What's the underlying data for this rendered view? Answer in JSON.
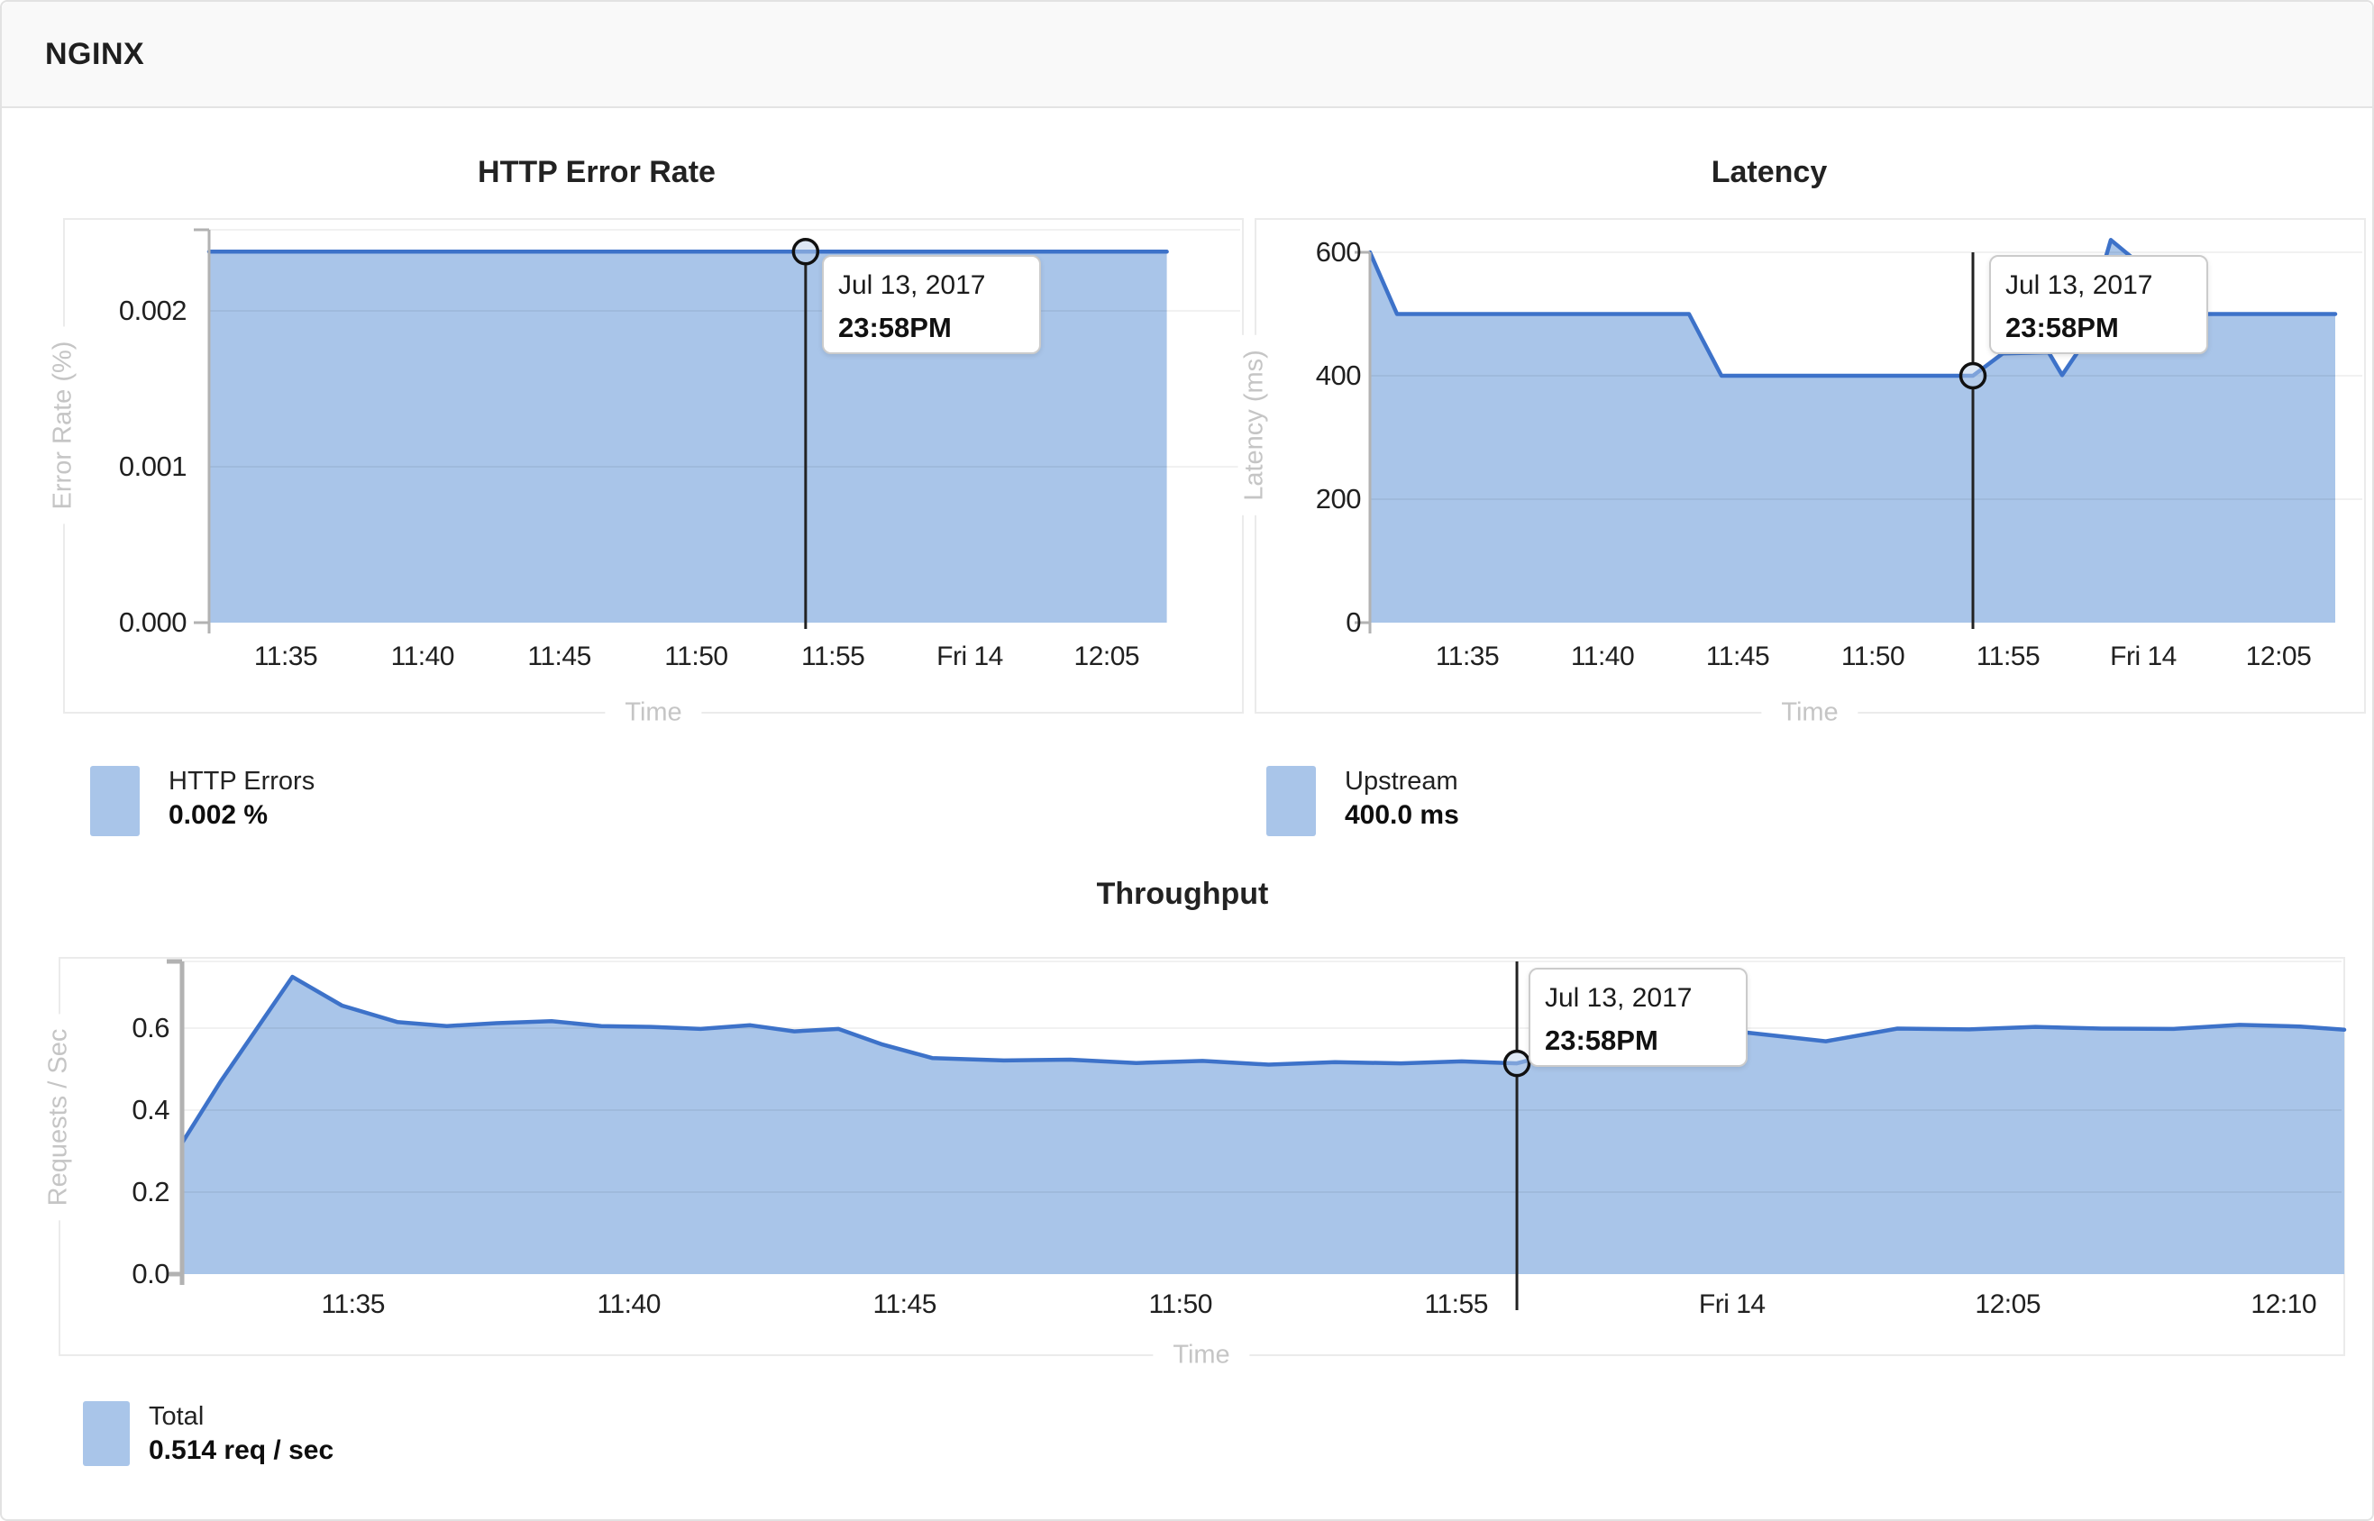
{
  "header": {
    "title": "NGINX"
  },
  "tooltip": {
    "date": "Jul 13, 2017",
    "time": "23:58PM"
  },
  "colors": {
    "area": "#a9c5e9",
    "line": "#3d72c9",
    "axis": "#b2b2b2",
    "grid": "rgba(0,0,0,0.055)",
    "crosshair": "#222222",
    "axis_label_text": "#c5c5c5",
    "tick_text": "#202020"
  },
  "legends": [
    {
      "label": "HTTP Errors",
      "value": "0.002 %"
    },
    {
      "label": "Upstream",
      "value": "400.0 ms"
    },
    {
      "label": "Total",
      "value": "0.514 req / sec"
    }
  ],
  "chart_data": [
    {
      "type": "area",
      "title": "HTTP Error Rate",
      "xlabel": "Time",
      "ylabel": "Error Rate (%)",
      "x_unit": "minutes after 11:00 (60 = Fri 14 00:00)",
      "xlim": [
        32.2,
        67.2
      ],
      "ylim": [
        0,
        0.00252
      ],
      "grid": true,
      "legend_position": "below-left",
      "x_ticks": [
        {
          "t": 35,
          "label": "11:35"
        },
        {
          "t": 40,
          "label": "11:40"
        },
        {
          "t": 45,
          "label": "11:45"
        },
        {
          "t": 50,
          "label": "11:50"
        },
        {
          "t": 55,
          "label": "11:55"
        },
        {
          "t": 60,
          "label": "Fri 14"
        },
        {
          "t": 65,
          "label": "12:05"
        }
      ],
      "y_ticks": [
        {
          "v": 0,
          "label": "0.000"
        },
        {
          "v": 0.001,
          "label": "0.001"
        },
        {
          "v": 0.002,
          "label": "0.002"
        }
      ],
      "series": [
        {
          "name": "HTTP Errors",
          "points": [
            [
              32.2,
              0.00238
            ],
            [
              67.2,
              0.00238
            ]
          ]
        }
      ],
      "marker": {
        "t": 54.0,
        "value": 0.00238
      }
    },
    {
      "type": "area",
      "title": "Latency",
      "xlabel": "Time",
      "ylabel": "Latency (ms)",
      "x_unit": "minutes after 11:00 (60 = Fri 14 00:00)",
      "xlim": [
        31.4,
        67.1
      ],
      "ylim": [
        0,
        600
      ],
      "grid": true,
      "legend_position": "below-left",
      "x_ticks": [
        {
          "t": 35,
          "label": "11:35"
        },
        {
          "t": 40,
          "label": "11:40"
        },
        {
          "t": 45,
          "label": "11:45"
        },
        {
          "t": 50,
          "label": "11:50"
        },
        {
          "t": 55,
          "label": "11:55"
        },
        {
          "t": 60,
          "label": "Fri 14"
        },
        {
          "t": 65,
          "label": "12:05"
        }
      ],
      "y_ticks": [
        {
          "v": 0,
          "label": "0"
        },
        {
          "v": 200,
          "label": "200"
        },
        {
          "v": 400,
          "label": "400"
        },
        {
          "v": 600,
          "label": "600"
        }
      ],
      "series": [
        {
          "name": "Upstream",
          "points": [
            [
              31.4,
              600
            ],
            [
              32.4,
              500
            ],
            [
              43.2,
              500
            ],
            [
              44.4,
              400
            ],
            [
              53.7,
              400
            ],
            [
              54.8,
              436
            ],
            [
              56.5,
              438
            ],
            [
              57.0,
              401
            ],
            [
              57.6,
              440
            ],
            [
              58.8,
              620
            ],
            [
              62.1,
              500
            ],
            [
              67.1,
              500
            ]
          ]
        }
      ],
      "marker": {
        "t": 53.7,
        "value": 400
      }
    },
    {
      "type": "area",
      "title": "Throughput",
      "xlabel": "Time",
      "ylabel": "Requests / Sec",
      "x_unit": "minutes after 11:00 (60 = Fri 14 00:00)",
      "xlim": [
        31.9,
        71.1
      ],
      "ylim": [
        0,
        0.747
      ],
      "grid": true,
      "legend_position": "below-left",
      "x_ticks": [
        {
          "t": 35,
          "label": "11:35"
        },
        {
          "t": 40,
          "label": "11:40"
        },
        {
          "t": 45,
          "label": "11:45"
        },
        {
          "t": 50,
          "label": "11:50"
        },
        {
          "t": 55,
          "label": "11:55"
        },
        {
          "t": 60,
          "label": "Fri 14"
        },
        {
          "t": 65,
          "label": "12:05"
        },
        {
          "t": 70,
          "label": "12:10"
        }
      ],
      "y_ticks": [
        {
          "v": 0,
          "label": "0.0"
        },
        {
          "v": 0.2,
          "label": "0.2"
        },
        {
          "v": 0.4,
          "label": "0.4"
        },
        {
          "v": 0.6,
          "label": "0.6"
        }
      ],
      "series": [
        {
          "name": "Total",
          "points": [
            [
              31.9,
              0.32
            ],
            [
              32.6,
              0.47
            ],
            [
              33.9,
              0.725
            ],
            [
              34.8,
              0.655
            ],
            [
              35.8,
              0.615
            ],
            [
              36.7,
              0.605
            ],
            [
              37.6,
              0.612
            ],
            [
              38.6,
              0.617
            ],
            [
              39.5,
              0.605
            ],
            [
              40.4,
              0.603
            ],
            [
              41.3,
              0.598
            ],
            [
              42.2,
              0.607
            ],
            [
              43.0,
              0.592
            ],
            [
              43.8,
              0.598
            ],
            [
              44.6,
              0.56
            ],
            [
              45.5,
              0.527
            ],
            [
              46.8,
              0.521
            ],
            [
              48.0,
              0.523
            ],
            [
              49.2,
              0.515
            ],
            [
              50.4,
              0.52
            ],
            [
              51.6,
              0.511
            ],
            [
              52.8,
              0.517
            ],
            [
              54.0,
              0.514
            ],
            [
              55.1,
              0.519
            ],
            [
              56.1,
              0.514
            ],
            [
              57.0,
              0.545
            ],
            [
              57.9,
              0.595
            ],
            [
              59.1,
              0.6
            ],
            [
              60.2,
              0.59
            ],
            [
              61.7,
              0.568
            ],
            [
              63.0,
              0.599
            ],
            [
              64.3,
              0.597
            ],
            [
              65.5,
              0.603
            ],
            [
              66.7,
              0.599
            ],
            [
              68.0,
              0.598
            ],
            [
              69.2,
              0.608
            ],
            [
              70.3,
              0.604
            ],
            [
              71.1,
              0.596
            ]
          ]
        }
      ],
      "marker": {
        "t": 56.1,
        "value": 0.514
      }
    }
  ]
}
